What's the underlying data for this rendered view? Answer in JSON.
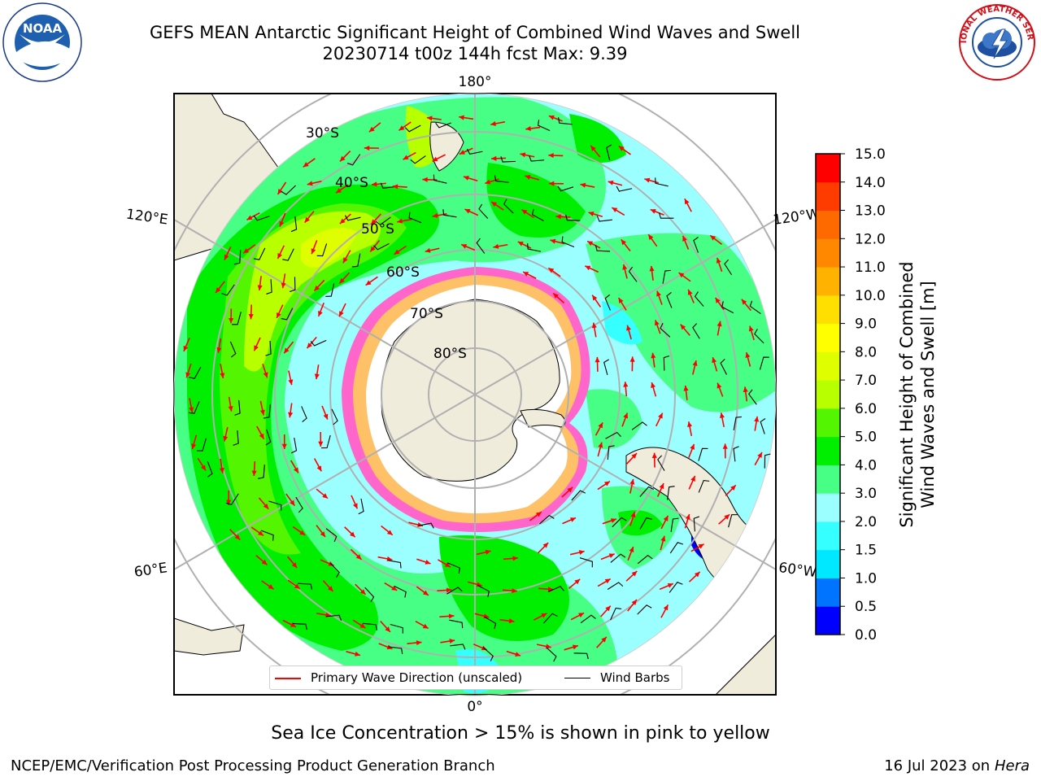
{
  "header": {
    "title_line1": "GEFS MEAN Antarctic Significant Height of Combined Wind Waves and Swell",
    "title_line2": "20230714 t00z 144h fcst   Max: 9.39"
  },
  "logos": {
    "left": {
      "text": "NOAA",
      "icon": "noaa-logo"
    },
    "right": {
      "text": "NATIONAL WEATHER SERVICE",
      "icon": "nws-logo"
    }
  },
  "map": {
    "projection": "south-polar-stereographic",
    "latitude_labels": [
      "30°S",
      "40°S",
      "50°S",
      "60°S",
      "70°S",
      "80°S"
    ],
    "longitude_labels": {
      "top": "180°",
      "bottom": "0°",
      "upper_left": "120°E",
      "upper_right": "120°W",
      "lower_left": "60°E",
      "lower_right": "60°W"
    },
    "colors": {
      "land": "#efecdc",
      "sea_ice": "#ff66cc",
      "ice_shelf": "#ffffff",
      "graticule": "#b0b0b0",
      "wave_arrow": "#ff0000",
      "wind_barb": "#000000"
    }
  },
  "legend": {
    "wave_direction": "Primary Wave Direction (unscaled)",
    "wind_barbs": "Wind Barbs"
  },
  "colorbar": {
    "title_line1": "Significant Height of Combined",
    "title_line2": "Wind Waves and Swell [m]",
    "ticks": [
      "0.0",
      "0.5",
      "1.0",
      "1.5",
      "2.0",
      "3.0",
      "4.0",
      "5.0",
      "6.0",
      "7.0",
      "8.0",
      "9.0",
      "10.0",
      "11.0",
      "12.0",
      "13.0",
      "14.0",
      "15.0"
    ],
    "colors": [
      "#0000ff",
      "#0074ff",
      "#00e8ff",
      "#36ffff",
      "#9cffff",
      "#47ff85",
      "#00ef00",
      "#54f500",
      "#b8ff00",
      "#dfff00",
      "#ffff00",
      "#ffdf00",
      "#ffb300",
      "#ff8800",
      "#ff6a00",
      "#ff3c00",
      "#ff0000"
    ]
  },
  "footer": {
    "note": "Sea Ice Concentration > 15% is shown in pink to yellow",
    "credit": "NCEP/EMC/Verification Post Processing Product Generation Branch",
    "date": "16 Jul 2023 on",
    "host": "Hera"
  }
}
